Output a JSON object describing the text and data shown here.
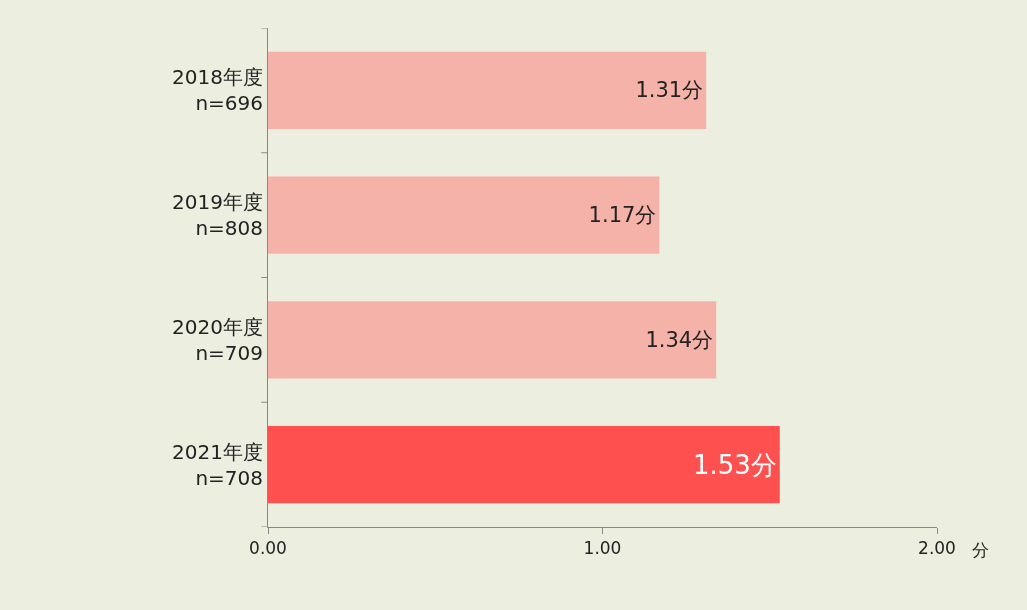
{
  "chart_data": {
    "type": "bar",
    "orientation": "horizontal",
    "categories": [
      "2018年度\nn=696",
      "2019年度\nn=808",
      "2020年度\nn=709",
      "2021年度\nn=708"
    ],
    "values": [
      1.31,
      1.17,
      1.34,
      1.53
    ],
    "colors": [
      "#f4b2a8",
      "#f4b2a8",
      "#f4b2a8",
      "#ff5050"
    ],
    "value_labels": [
      "1.31分",
      "1.17分",
      "1.34分",
      "1.53分"
    ],
    "xlim": [
      0,
      2
    ],
    "xticks": [
      {
        "value": 0,
        "label": "0.00"
      },
      {
        "value": 1,
        "label": "1.00"
      },
      {
        "value": 2,
        "label": "2.00"
      }
    ],
    "xlabel": "分"
  }
}
